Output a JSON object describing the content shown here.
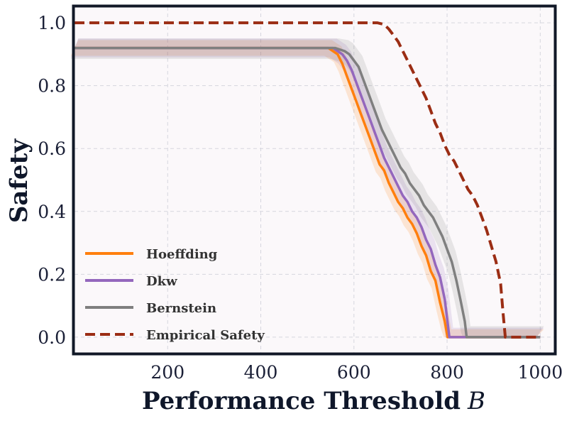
{
  "chart_data": {
    "type": "line",
    "title": "",
    "xlabel": "Performance Threshold",
    "xlabel_var": "B",
    "ylabel": "Safety",
    "xlim": [
      0,
      1030
    ],
    "ylim": [
      -0.05,
      1.05
    ],
    "xticks": [
      200,
      400,
      600,
      800,
      1000
    ],
    "yticks": [
      0.0,
      0.2,
      0.4,
      0.6,
      0.8,
      1.0
    ],
    "xtick_labels": [
      "200",
      "400",
      "600",
      "800",
      "1000"
    ],
    "ytick_labels": [
      "0.0",
      "0.2",
      "0.4",
      "0.6",
      "0.8",
      "1.0"
    ],
    "grid": true,
    "legend_position": "lower-left",
    "colors": {
      "background": "#fbf8fa",
      "frame": "#111827",
      "hoeffding": "#ff7f0e",
      "dkw": "#9467bd",
      "bernstein": "#7f7f7f",
      "empirical": "#9b2d14"
    },
    "series": [
      {
        "name": "Hoeffding",
        "key": "hoeffding",
        "style": "solid",
        "band": 0.025,
        "x": [
          0,
          530,
          545,
          555,
          565,
          575,
          585,
          595,
          605,
          615,
          625,
          635,
          645,
          655,
          665,
          675,
          685,
          695,
          705,
          715,
          725,
          735,
          745,
          755,
          765,
          775,
          785,
          795,
          801,
          1000
        ],
        "y": [
          0.92,
          0.92,
          0.92,
          0.91,
          0.9,
          0.87,
          0.83,
          0.79,
          0.75,
          0.71,
          0.67,
          0.63,
          0.59,
          0.55,
          0.53,
          0.49,
          0.46,
          0.43,
          0.41,
          0.38,
          0.36,
          0.33,
          0.29,
          0.26,
          0.21,
          0.18,
          0.11,
          0.05,
          0.0,
          0.0
        ]
      },
      {
        "name": "Dkw",
        "key": "dkw",
        "style": "solid",
        "band": 0.03,
        "x": [
          0,
          540,
          555,
          565,
          575,
          585,
          595,
          605,
          615,
          625,
          635,
          645,
          655,
          665,
          675,
          685,
          695,
          705,
          715,
          725,
          735,
          745,
          755,
          765,
          775,
          785,
          795,
          805,
          1000
        ],
        "y": [
          0.92,
          0.92,
          0.92,
          0.91,
          0.9,
          0.88,
          0.85,
          0.81,
          0.77,
          0.73,
          0.69,
          0.65,
          0.61,
          0.57,
          0.54,
          0.51,
          0.48,
          0.45,
          0.43,
          0.4,
          0.38,
          0.35,
          0.31,
          0.28,
          0.23,
          0.19,
          0.12,
          0.0,
          0.0
        ]
      },
      {
        "name": "Bernstein",
        "key": "bernstein",
        "style": "solid",
        "band": 0.035,
        "x": [
          0,
          560,
          580,
          590,
          600,
          610,
          620,
          630,
          640,
          650,
          660,
          670,
          680,
          690,
          700,
          710,
          720,
          730,
          740,
          750,
          760,
          770,
          780,
          790,
          800,
          810,
          820,
          830,
          838,
          842,
          1000
        ],
        "y": [
          0.92,
          0.92,
          0.91,
          0.9,
          0.88,
          0.86,
          0.82,
          0.78,
          0.74,
          0.7,
          0.66,
          0.63,
          0.6,
          0.57,
          0.54,
          0.52,
          0.49,
          0.47,
          0.45,
          0.42,
          0.4,
          0.38,
          0.35,
          0.32,
          0.28,
          0.24,
          0.18,
          0.11,
          0.05,
          0.0,
          0.0
        ]
      },
      {
        "name": "Empirical Safety",
        "key": "empirical",
        "style": "dashed",
        "band": 0,
        "x": [
          0,
          650,
          665,
          675,
          685,
          695,
          705,
          715,
          725,
          735,
          745,
          755,
          765,
          775,
          785,
          795,
          805,
          815,
          825,
          835,
          845,
          855,
          865,
          875,
          885,
          895,
          905,
          915,
          920,
          925,
          1000
        ],
        "y": [
          1.0,
          1.0,
          0.995,
          0.98,
          0.96,
          0.94,
          0.91,
          0.88,
          0.85,
          0.82,
          0.79,
          0.76,
          0.72,
          0.68,
          0.65,
          0.61,
          0.58,
          0.56,
          0.53,
          0.5,
          0.47,
          0.45,
          0.42,
          0.38,
          0.34,
          0.29,
          0.24,
          0.17,
          0.08,
          0.0,
          0.0
        ]
      }
    ]
  }
}
